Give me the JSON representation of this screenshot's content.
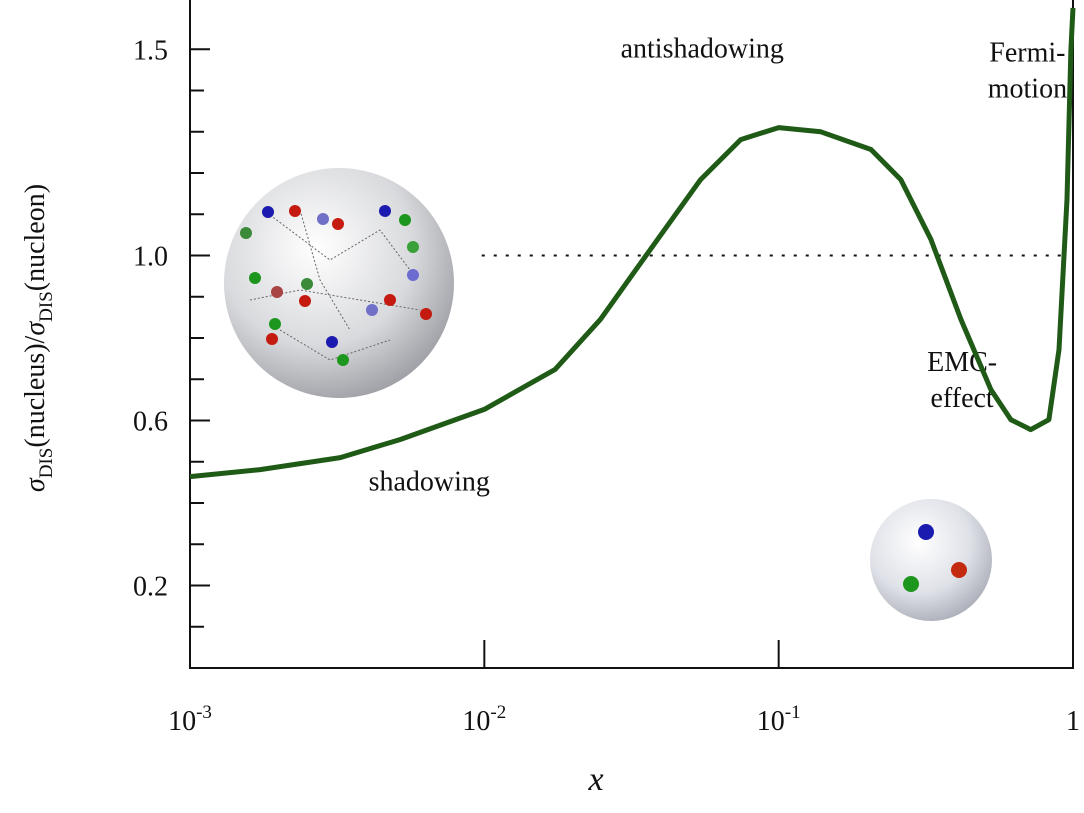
{
  "chart_data": {
    "type": "line",
    "xscale": "log",
    "xlabel": "x",
    "ylabel": [
      "σ",
      "DIS",
      "(nucleus)/",
      "σ",
      "DIS",
      "(nucleon)"
    ],
    "x": [
      0.001,
      0.00173,
      0.00324,
      0.00518,
      0.01,
      0.0174,
      0.0248,
      0.0367,
      0.0543,
      0.0743,
      0.1,
      0.139,
      0.206,
      0.26,
      0.329,
      0.416,
      0.526,
      0.615,
      0.719,
      0.828,
      0.896,
      0.954,
      0.984,
      1.0
    ],
    "series": [
      {
        "color": "#1f5a16",
        "values": [
          0.464,
          0.481,
          0.51,
          0.554,
          0.627,
          0.724,
          0.845,
          1.015,
          1.184,
          1.281,
          1.31,
          1.3,
          1.257,
          1.184,
          1.039,
          0.845,
          0.675,
          0.602,
          0.578,
          0.602,
          0.772,
          1.136,
          1.499,
          1.6
        ]
      }
    ],
    "xlim": [
      0.001,
      1
    ],
    "xticks": [
      {
        "value": 0.001,
        "label": "10",
        "sup": "-3"
      },
      {
        "value": 0.01,
        "label": "10",
        "sup": "-2"
      },
      {
        "value": 0.1,
        "label": "10",
        "sup": "-1"
      },
      1
    ],
    "ylim": [
      0,
      1.6
    ],
    "yticks": [
      0.2,
      0.6,
      {
        "value": 1,
        "label": "1.0"
      },
      1.5
    ],
    "minor_yticks": [
      0.1,
      0.3,
      0.4,
      0.5,
      0.7,
      0.8,
      0.9,
      1.1,
      1.2,
      1.3,
      1.4
    ],
    "reference_line": {
      "y": 1,
      "x": [
        0.0098,
        0.95
      ]
    },
    "annotations": [
      {
        "text": [
          "antishadowing"
        ],
        "x": 0.055,
        "y": 1.48
      },
      {
        "text": [
          "Fermi-",
          "motion"
        ],
        "x": 0.7,
        "y": 1.47
      },
      {
        "text": [
          "EMC-",
          "effect"
        ],
        "x": 0.42,
        "y": 0.72
      },
      {
        "text": [
          "shadowing"
        ],
        "x": 0.0065,
        "y": 0.43
      }
    ]
  }
}
